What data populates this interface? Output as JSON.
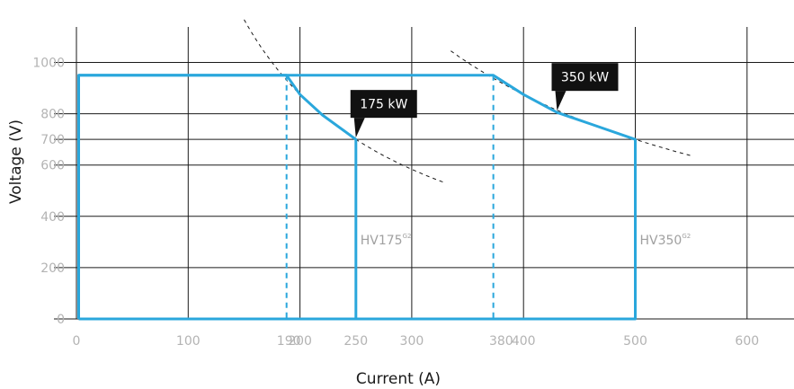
{
  "chart_data": {
    "type": "line",
    "xlabel": "Current (A)",
    "ylabel": "Voltage (V)",
    "xlim": [
      0,
      630
    ],
    "ylim": [
      0,
      1100
    ],
    "x_ticks": [
      {
        "value": 0,
        "label": "0"
      },
      {
        "value": 100,
        "label": "100"
      },
      {
        "value": 190,
        "label": "190"
      },
      {
        "value": 200,
        "label": "200"
      },
      {
        "value": 250,
        "label": "250"
      },
      {
        "value": 300,
        "label": "300"
      },
      {
        "value": 380,
        "label": "380"
      },
      {
        "value": 400,
        "label": "400"
      },
      {
        "value": 500,
        "label": "500"
      },
      {
        "value": 600,
        "label": "600"
      }
    ],
    "y_ticks": [
      {
        "value": 0,
        "label": "0"
      },
      {
        "value": 200,
        "label": "200"
      },
      {
        "value": 400,
        "label": "400"
      },
      {
        "value": 600,
        "label": "600"
      },
      {
        "value": 700,
        "label": "700"
      },
      {
        "value": 800,
        "label": "800"
      },
      {
        "value": 1000,
        "label": "1000"
      }
    ],
    "grid": true,
    "series": [
      {
        "name": "HV175",
        "label_main": "HV175",
        "label_sup": "G2",
        "color": "#2aa7dc",
        "points": [
          [
            2,
            0
          ],
          [
            2,
            950
          ],
          [
            188,
            950
          ],
          [
            200,
            875
          ],
          [
            220,
            795
          ],
          [
            250,
            700
          ],
          [
            250,
            0
          ],
          [
            2,
            0
          ]
        ],
        "dashed_x": 188
      },
      {
        "name": "HV350",
        "label_main": "HV350",
        "label_sup": "G2",
        "color": "#2aa7dc",
        "points": [
          [
            2,
            950
          ],
          [
            373,
            950
          ],
          [
            400,
            875
          ],
          [
            430,
            805
          ],
          [
            460,
            760
          ],
          [
            500,
            700
          ],
          [
            500,
            0
          ],
          [
            2,
            0
          ]
        ],
        "dashed_x": 373
      }
    ],
    "power_curves": [
      {
        "power_kw": 175,
        "x_from": 150,
        "x_to": 330
      },
      {
        "power_kw": 350,
        "x_from": 335,
        "x_to": 550
      }
    ],
    "annotations": [
      {
        "text": "175 kW",
        "at": [
          250,
          700
        ]
      },
      {
        "text": "350 kW",
        "at": [
          430,
          805
        ]
      }
    ]
  }
}
